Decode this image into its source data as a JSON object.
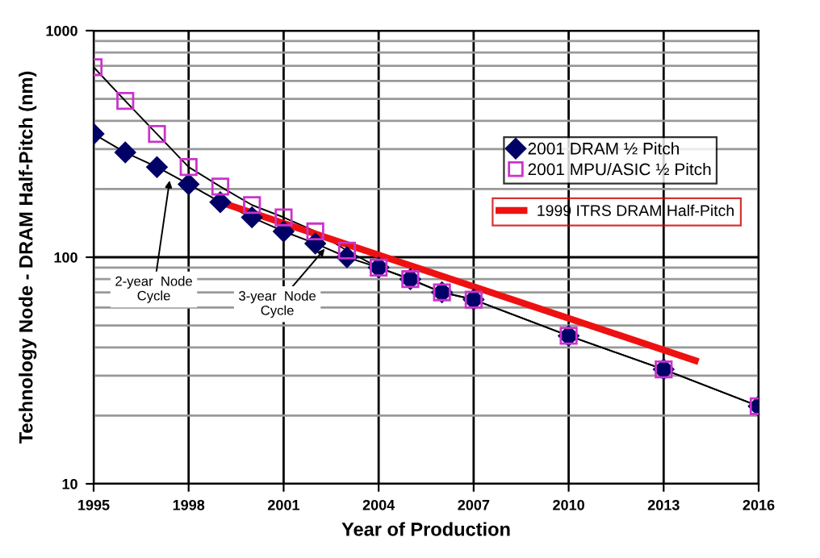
{
  "chart_data": {
    "type": "line",
    "xlabel": "Year of Production",
    "ylabel": "Technology Node - DRAM Half-Pitch (nm)",
    "log": "y",
    "grid": true,
    "legend": "right",
    "xlim": [
      1995,
      2016
    ],
    "xticks": [
      1995,
      1998,
      2001,
      2004,
      2007,
      2010,
      2013,
      2016
    ],
    "ylim": [
      10,
      1000
    ],
    "yticks": [
      10,
      100,
      1000
    ],
    "series": [
      {
        "name": "2001 DRAM ½ Pitch",
        "color": "#000066",
        "marker": "diamond",
        "x": [
          1995,
          1996,
          1997,
          1998,
          1999,
          2000,
          2001,
          2002,
          2003,
          2004,
          2005,
          2006,
          2007,
          2010,
          2013,
          2016
        ],
        "values": [
          350,
          290,
          250,
          210,
          175,
          150,
          130,
          115,
          100,
          90,
          80,
          70,
          65,
          45,
          32,
          22
        ]
      },
      {
        "name": "2001 MPU/ASIC ½ Pitch",
        "color": "#cc33cc",
        "marker": "square",
        "x": [
          1995,
          1996,
          1997,
          1998,
          1999,
          2000,
          2001,
          2002,
          2003,
          2004,
          2005,
          2006,
          2007,
          2010,
          2013,
          2016
        ],
        "values": [
          690,
          490,
          350,
          250,
          205,
          170,
          150,
          130,
          107,
          90,
          80,
          70,
          65,
          45,
          32,
          22
        ]
      },
      {
        "name": "1999 ITRS DRAM Half-Pitch",
        "color": "#ee1111",
        "marker": "none",
        "x": [
          1999,
          2014
        ],
        "values": [
          175,
          35
        ]
      }
    ],
    "annotations": [
      {
        "text": "2-year  Node\nCycle",
        "x": 1997.4,
        "y": 218
      },
      {
        "text": "3-year  Node\nCycle",
        "x": 2002.3,
        "y": 109
      }
    ]
  }
}
